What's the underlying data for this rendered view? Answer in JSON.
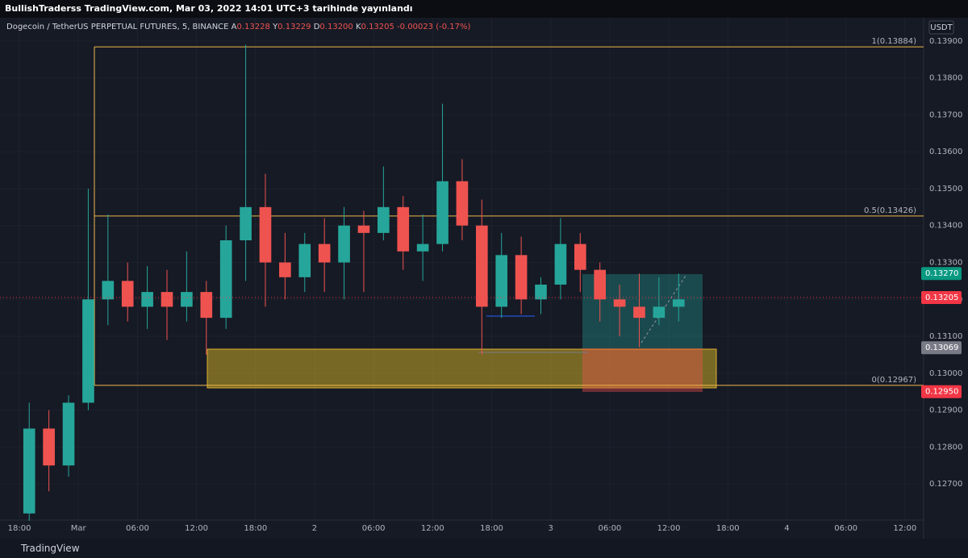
{
  "header": {
    "title": "BullishTraderss TradingView.com, Mar 03, 2022 14:01 UTC+3 tarihinde yayınlandı"
  },
  "symbol": {
    "name": "Dogecoin / TetherUS PERPETUAL FUTURES, 5, BINANCE",
    "fields": [
      {
        "key": "A",
        "value": "0.13228"
      },
      {
        "key": "Y",
        "value": "0.13229"
      },
      {
        "key": "D",
        "value": "0.13200"
      },
      {
        "key": "K",
        "value": "0.13205"
      }
    ],
    "change": "-0.00023 (-0.17%)"
  },
  "currency": "USDT",
  "chart_data": {
    "type": "candlestick",
    "x": [
      1,
      3,
      5,
      7,
      9,
      11,
      13,
      15,
      17,
      19,
      21,
      23,
      25,
      27,
      29,
      31,
      33,
      35,
      37,
      39,
      41,
      43,
      45,
      47,
      49,
      51,
      53,
      55,
      57,
      59,
      61,
      63,
      65,
      67
    ],
    "open": [
      0.1262,
      0.1285,
      0.1275,
      0.1292,
      0.132,
      0.1325,
      0.1318,
      0.1322,
      0.1318,
      0.1322,
      0.1315,
      0.1336,
      0.1345,
      0.133,
      0.1326,
      0.1335,
      0.133,
      0.134,
      0.1338,
      0.1345,
      0.1333,
      0.1335,
      0.1352,
      0.134,
      0.1318,
      0.1332,
      0.132,
      0.1324,
      0.1335,
      0.1328,
      0.132,
      0.1318,
      0.1315,
      0.1318
    ],
    "high": [
      0.1292,
      0.129,
      0.1294,
      0.135,
      0.1343,
      0.133,
      0.1329,
      0.1328,
      0.1333,
      0.1325,
      0.134,
      0.1389,
      0.1354,
      0.1338,
      0.1338,
      0.1342,
      0.1345,
      0.1344,
      0.1356,
      0.1348,
      0.1343,
      0.1373,
      0.1358,
      0.1347,
      0.1338,
      0.1337,
      0.1326,
      0.1342,
      0.1338,
      0.133,
      0.1324,
      0.1327,
      0.1326,
      0.1327
    ],
    "low": [
      0.126,
      0.1268,
      0.1272,
      0.129,
      0.1313,
      0.1314,
      0.1312,
      0.1309,
      0.1314,
      0.1305,
      0.1312,
      0.1325,
      0.1318,
      0.132,
      0.1322,
      0.1322,
      0.132,
      0.1322,
      0.1336,
      0.1328,
      0.1325,
      0.1333,
      0.1336,
      0.1305,
      0.1315,
      0.1316,
      0.1316,
      0.132,
      0.1322,
      0.1314,
      0.131,
      0.1307,
      0.1313,
      0.1314
    ],
    "close": [
      0.1285,
      0.1275,
      0.1292,
      0.132,
      0.1325,
      0.1318,
      0.1322,
      0.1318,
      0.1322,
      0.1315,
      0.1336,
      0.1345,
      0.133,
      0.1326,
      0.1335,
      0.133,
      0.134,
      0.1338,
      0.1345,
      0.1333,
      0.1335,
      0.1352,
      0.134,
      0.1318,
      0.1332,
      0.132,
      0.1324,
      0.1335,
      0.1328,
      0.132,
      0.1318,
      0.1315,
      0.1318,
      0.132
    ],
    "up_color": "#26a69a",
    "down_color": "#ef5350",
    "xlim": [
      -1.97,
      91.9
    ],
    "xticks": [
      {
        "value": 0,
        "label": "18:00"
      },
      {
        "value": 6,
        "label": "Mar"
      },
      {
        "value": 12,
        "label": "06:00"
      },
      {
        "value": 18,
        "label": "12:00"
      },
      {
        "value": 24,
        "label": "18:00"
      },
      {
        "value": 30,
        "label": "2"
      },
      {
        "value": 36,
        "label": "06:00"
      },
      {
        "value": 42,
        "label": "12:00"
      },
      {
        "value": 48,
        "label": "18:00"
      },
      {
        "value": 54,
        "label": "3"
      },
      {
        "value": 60,
        "label": "06:00"
      },
      {
        "value": 66,
        "label": "12:00"
      },
      {
        "value": 72,
        "label": "18:00"
      },
      {
        "value": 78,
        "label": "4"
      },
      {
        "value": 84,
        "label": "06:00"
      },
      {
        "value": 90,
        "label": "12:00"
      }
    ],
    "ylim": [
      0.12602,
      0.13963
    ],
    "yticks": [
      {
        "value": 0.127,
        "label": "0.12700"
      },
      {
        "value": 0.128,
        "label": "0.12800"
      },
      {
        "value": 0.129,
        "label": "0.12900"
      },
      {
        "value": 0.13,
        "label": "0.13000"
      },
      {
        "value": 0.131,
        "label": "0.13100"
      },
      {
        "value": 0.132,
        "label": "0.13200"
      },
      {
        "value": 0.133,
        "label": "0.13300"
      },
      {
        "value": 0.134,
        "label": "0.13400"
      },
      {
        "value": 0.135,
        "label": "0.13500"
      },
      {
        "value": 0.136,
        "label": "0.13600"
      },
      {
        "value": 0.137,
        "label": "0.13700"
      },
      {
        "value": 0.138,
        "label": "0.13800"
      },
      {
        "value": 0.139,
        "label": "0.13900"
      }
    ],
    "grid": true,
    "levels": [
      {
        "value": 0.13884,
        "label": "1(0.13884)"
      },
      {
        "value": 0.13426,
        "label": "0.5(0.13426)"
      },
      {
        "value": 0.12967,
        "label": "0(0.12967)"
      }
    ],
    "level_color": "#f0b84a",
    "price_badges": [
      {
        "value": 0.1327,
        "label": "0.13270",
        "color": "#089981"
      },
      {
        "value": 0.13205,
        "label": "0.13205",
        "color": "#f23645",
        "line": true
      },
      {
        "value": 0.13069,
        "label": "0.13069",
        "color": "#787b86"
      },
      {
        "value": 0.1295,
        "label": "0.12950",
        "color": "#f23645"
      }
    ]
  },
  "footer": {
    "brand": "TradingView"
  }
}
